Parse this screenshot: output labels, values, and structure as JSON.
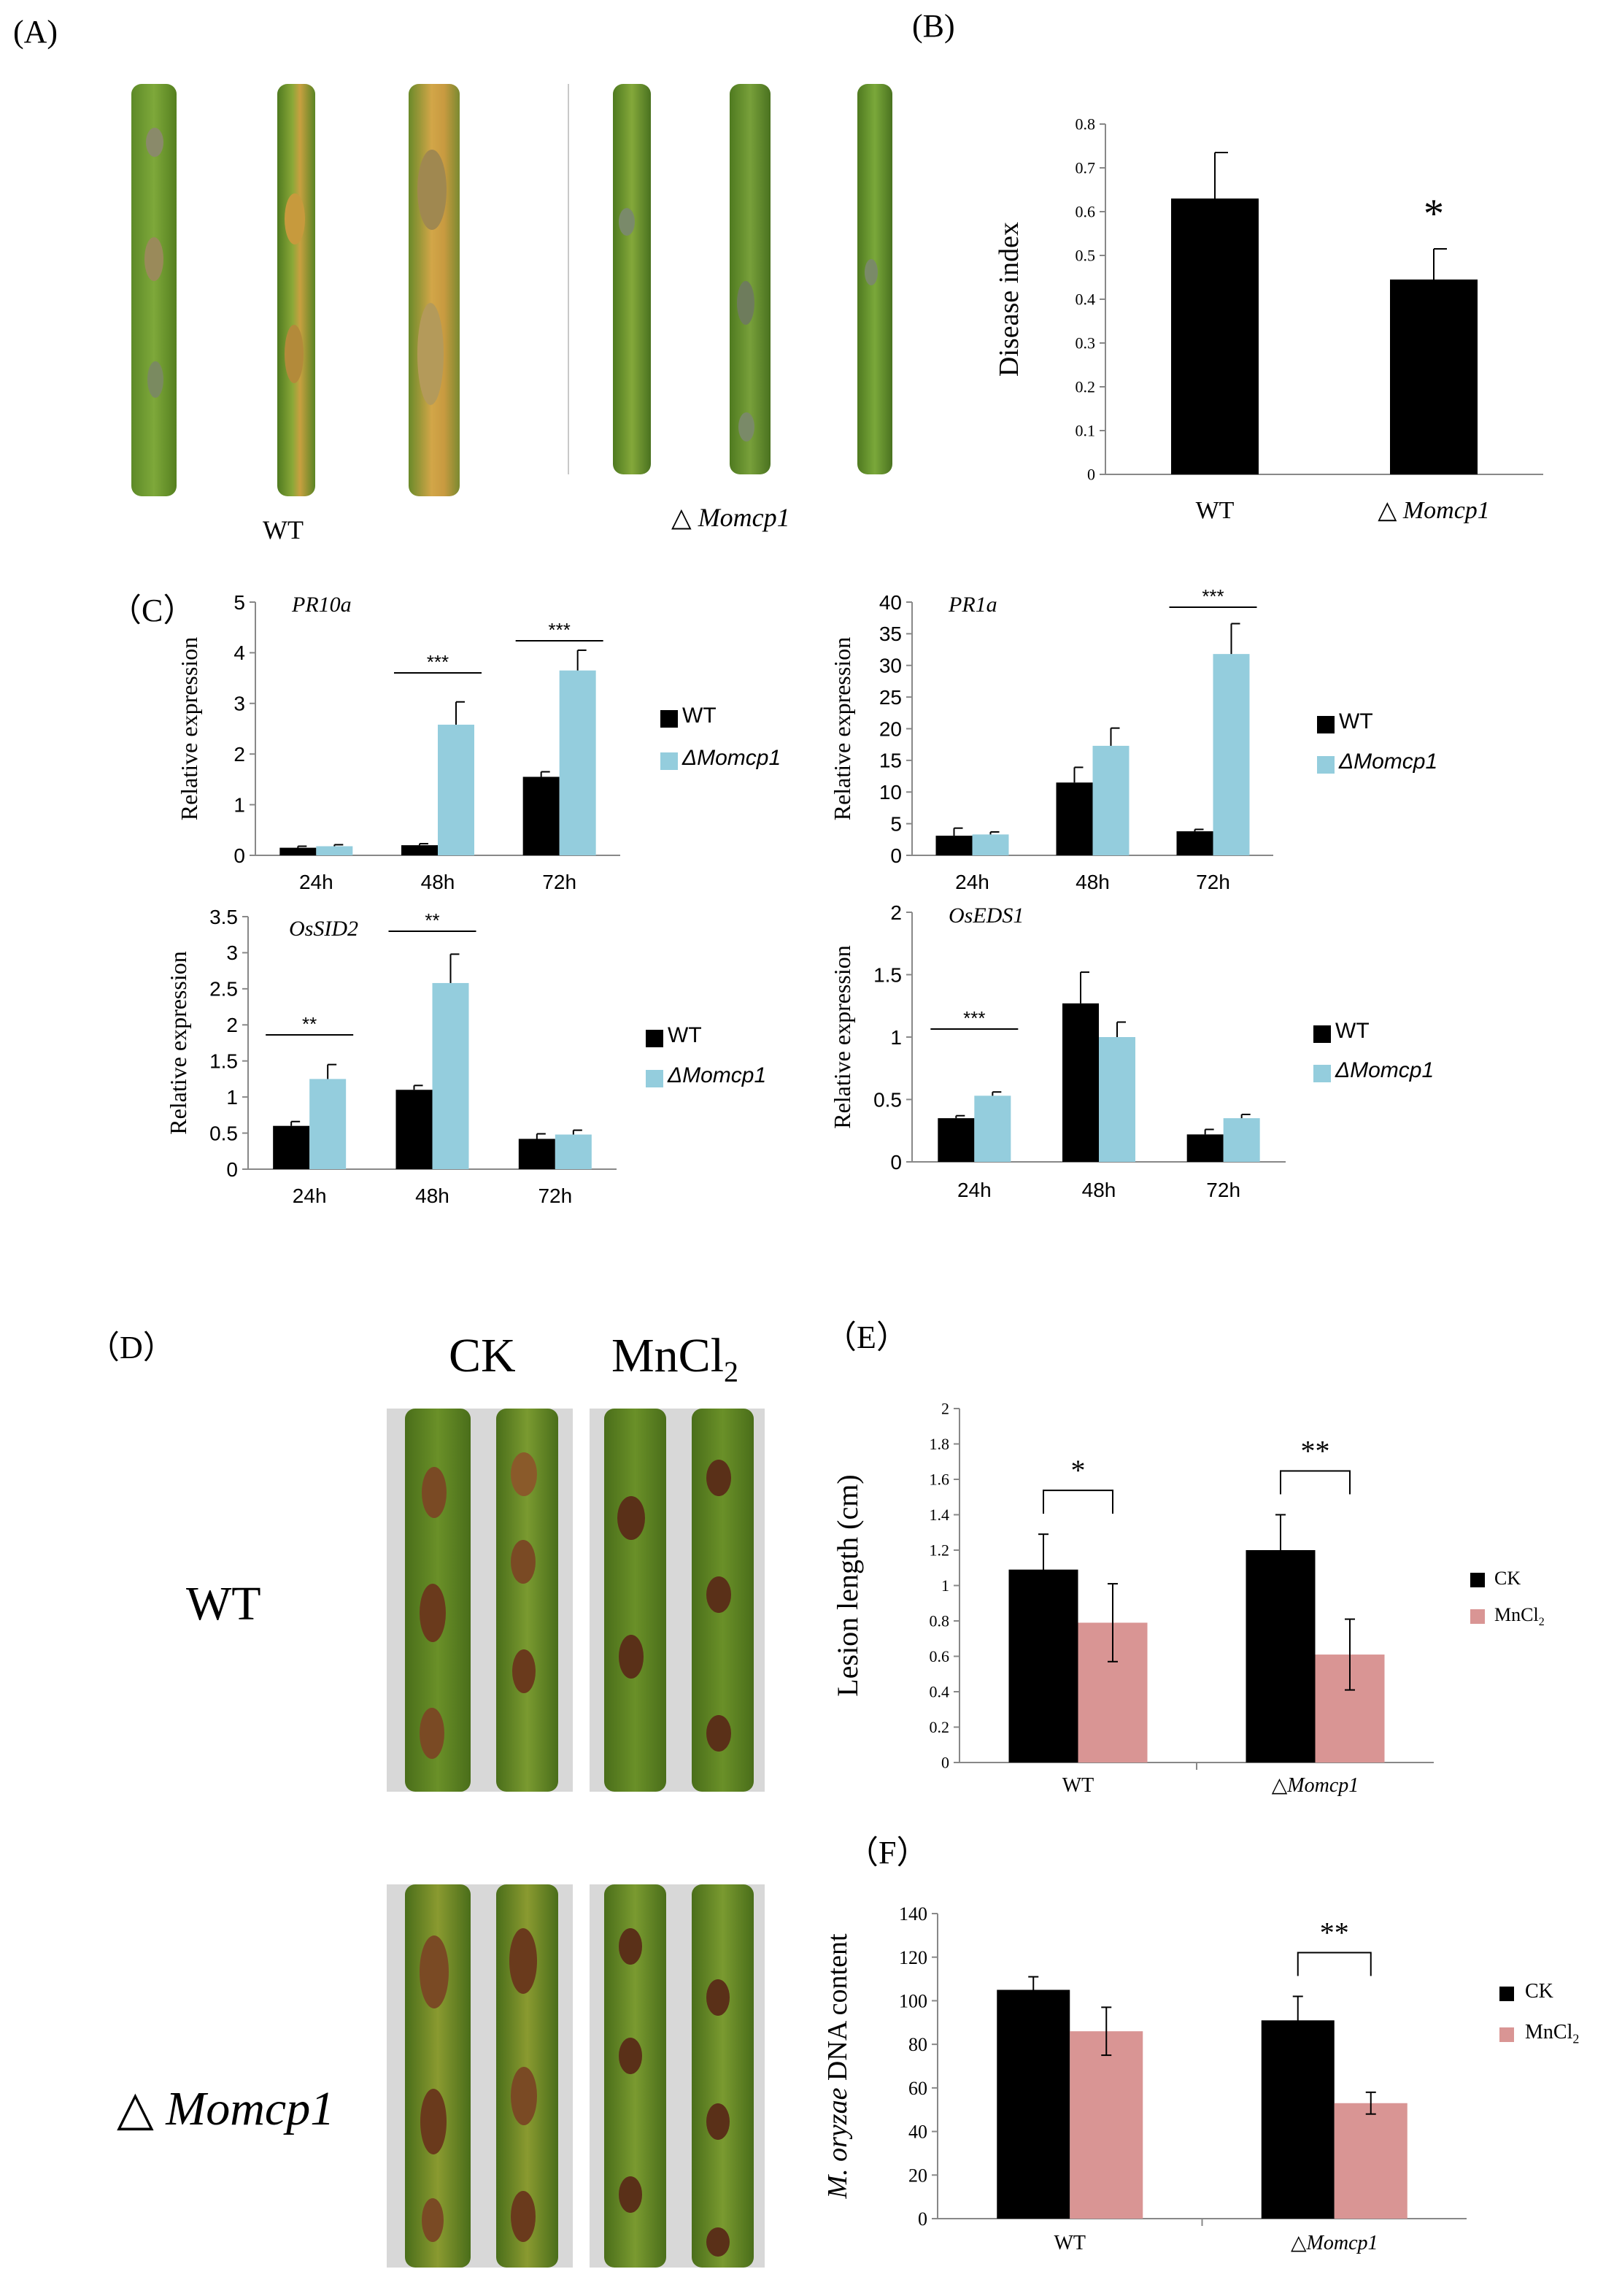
{
  "panel_labels": {
    "A": "(A)",
    "B": "(B)",
    "C": "（C）",
    "D": "（D）",
    "E": "（E）",
    "F": "（F）"
  },
  "panel_a": {
    "label_wt": "WT",
    "label_mut_prefix": "△",
    "label_mut": "Momcp1"
  },
  "panel_d": {
    "col_ck": "CK",
    "col_mn": "MnCl",
    "col_mn_sub": "2",
    "row_wt": "WT",
    "row_mut_prefix": "△",
    "row_mut": "Momcp1"
  },
  "legend_c": {
    "wt": "WT",
    "mut": "ΔMomcp1"
  },
  "legend_e": {
    "ck": "CK",
    "mn": "MnCl",
    "mn_sub": "2"
  },
  "colors": {
    "black": "#000000",
    "cyan": "#94cddd",
    "pink": "#d99594",
    "leaf_green": "#4f7a20",
    "leaf_yellow": "#b58a2a"
  },
  "chart_data": [
    {
      "id": "B",
      "type": "bar",
      "categories": [
        "WT",
        "△ Momcp1"
      ],
      "values": [
        0.63,
        0.445
      ],
      "errors": [
        0.105,
        0.07
      ],
      "ylabel": "Disease index",
      "ylim": [
        0,
        0.8
      ],
      "yticks": [
        "0",
        "0.1",
        "0.2",
        "0.3",
        "0.4",
        "0.5",
        "0.6",
        "0.7",
        "0.8"
      ],
      "annotation": "*"
    },
    {
      "id": "C1",
      "type": "bar",
      "title": "PR10a",
      "categories": [
        "24h",
        "48h",
        "72h"
      ],
      "series": [
        {
          "name": "WT",
          "values": [
            0.15,
            0.2,
            1.55
          ],
          "errors": [
            0.03,
            0.03,
            0.1
          ]
        },
        {
          "name": "ΔMomcp1",
          "values": [
            0.18,
            2.58,
            3.65
          ],
          "errors": [
            0.03,
            0.45,
            0.4
          ]
        }
      ],
      "ylabel": "Relative expression",
      "ylim": [
        0,
        5
      ],
      "yticks": [
        "0",
        "1",
        "2",
        "3",
        "4",
        "5"
      ],
      "sig": [
        "",
        "***",
        "***"
      ]
    },
    {
      "id": "C2",
      "type": "bar",
      "title": "PR1a",
      "categories": [
        "24h",
        "48h",
        "72h"
      ],
      "series": [
        {
          "name": "WT",
          "values": [
            3.1,
            11.5,
            3.8
          ],
          "errors": [
            1.2,
            2.4,
            0.3
          ]
        },
        {
          "name": "ΔMomcp1",
          "values": [
            3.3,
            17.3,
            31.8
          ],
          "errors": [
            0.4,
            2.8,
            4.8
          ]
        }
      ],
      "ylabel": "Relative expression",
      "ylim": [
        0,
        40
      ],
      "yticks": [
        "0",
        "5",
        "10",
        "15",
        "20",
        "25",
        "30",
        "35",
        "40"
      ],
      "sig": [
        "",
        "",
        "***"
      ]
    },
    {
      "id": "C3",
      "type": "bar",
      "title": "OsSID2",
      "categories": [
        "24h",
        "48h",
        "72h"
      ],
      "series": [
        {
          "name": "WT",
          "values": [
            0.6,
            1.1,
            0.42
          ],
          "errors": [
            0.06,
            0.06,
            0.07
          ]
        },
        {
          "name": "ΔMomcp1",
          "values": [
            1.25,
            2.58,
            0.48
          ],
          "errors": [
            0.2,
            0.4,
            0.06
          ]
        }
      ],
      "ylabel": "Relative expression",
      "ylim": [
        0,
        3.5
      ],
      "yticks": [
        "0",
        "0.5",
        "1",
        "1.5",
        "2",
        "2.5",
        "3",
        "3.5"
      ],
      "sig": [
        "**",
        "**",
        ""
      ]
    },
    {
      "id": "C4",
      "type": "bar",
      "title": "OsEDS1",
      "categories": [
        "24h",
        "48h",
        "72h"
      ],
      "series": [
        {
          "name": "WT",
          "values": [
            0.35,
            1.27,
            0.22
          ],
          "errors": [
            0.02,
            0.25,
            0.04
          ]
        },
        {
          "name": "ΔMomcp1",
          "values": [
            0.53,
            1.0,
            0.35
          ],
          "errors": [
            0.03,
            0.12,
            0.03
          ]
        }
      ],
      "ylabel": "Relative expression",
      "ylim": [
        0,
        2
      ],
      "yticks": [
        "0",
        "0.5",
        "1",
        "1.5",
        "2"
      ],
      "sig": [
        "***",
        "",
        ""
      ]
    },
    {
      "id": "E",
      "type": "bar",
      "categories": [
        "WT",
        "△Momcp1"
      ],
      "series": [
        {
          "name": "CK",
          "values": [
            1.09,
            1.2
          ],
          "errors": [
            0.2,
            0.2
          ]
        },
        {
          "name": "MnCl2",
          "values": [
            0.79,
            0.61
          ],
          "errors": [
            0.22,
            0.2
          ]
        }
      ],
      "ylabel": "Lesion length (cm)",
      "ylim": [
        0,
        2
      ],
      "yticks": [
        "0",
        "0.2",
        "0.4",
        "0.6",
        "0.8",
        "1",
        "1.2",
        "1.4",
        "1.6",
        "1.8",
        "2"
      ],
      "sig": [
        "*",
        "**"
      ]
    },
    {
      "id": "F",
      "type": "bar",
      "categories": [
        "WT",
        "△Momcp1"
      ],
      "series": [
        {
          "name": "CK",
          "values": [
            105,
            91
          ],
          "errors": [
            6,
            11
          ]
        },
        {
          "name": "MnCl2",
          "values": [
            86,
            53
          ],
          "errors": [
            11,
            5
          ]
        }
      ],
      "ylabel_italic": "M. oryzae",
      "ylabel": " DNA content",
      "ylim": [
        0,
        140
      ],
      "yticks": [
        "0",
        "20",
        "40",
        "60",
        "80",
        "100",
        "120",
        "140"
      ],
      "sig": [
        "",
        "**"
      ]
    }
  ]
}
